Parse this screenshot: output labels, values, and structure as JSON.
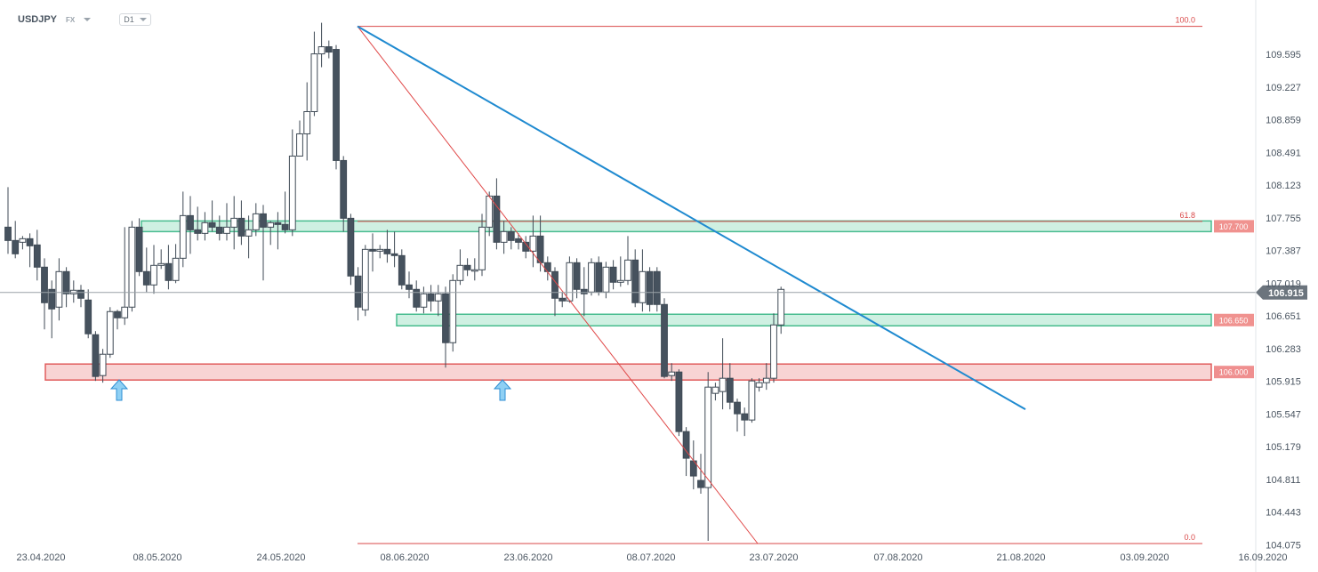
{
  "toolbar": {
    "symbol": "USDJPY",
    "market": "FX",
    "timeframe": "D1"
  },
  "chart_data": {
    "type": "candlestick",
    "symbol": "USDJPY",
    "timeframe": "D1",
    "current_price": "106.915",
    "y_ticks": [
      "109.595",
      "109.227",
      "108.859",
      "108.491",
      "108.123",
      "107.755",
      "107.387",
      "107.019",
      "106.651",
      "106.283",
      "105.915",
      "105.547",
      "105.179",
      "104.811",
      "104.443",
      "104.075"
    ],
    "x_ticks": [
      "23.04.2020",
      "08.05.2020",
      "24.05.2020",
      "08.06.2020",
      "23.06.2020",
      "08.07.2020",
      "23.07.2020",
      "07.08.2020",
      "21.08.2020",
      "03.09.2020",
      "16.09.2020"
    ],
    "ylim": [
      104.075,
      109.92
    ],
    "zones": [
      {
        "label": "107.700",
        "low": 107.62,
        "high": 107.7,
        "color": "#3fb98a"
      },
      {
        "label": "106.650",
        "low": 106.56,
        "high": 106.65,
        "color": "#3fb98a"
      },
      {
        "label": "106.000",
        "low": 105.95,
        "high": 106.09,
        "color": "#e05454"
      }
    ],
    "fib_levels": [
      {
        "label": "100.0",
        "price": 109.91
      },
      {
        "label": "61.8",
        "price": 107.715
      },
      {
        "label": "0.0",
        "price": 104.09
      }
    ],
    "candles": [
      [
        107.65,
        107.5,
        108.1,
        107.35
      ],
      [
        107.5,
        107.35,
        107.72,
        107.3
      ],
      [
        107.48,
        107.52,
        107.55,
        107.4
      ],
      [
        107.52,
        107.44,
        107.58,
        107.2
      ],
      [
        107.45,
        107.2,
        107.62,
        107.05
      ],
      [
        107.2,
        106.8,
        107.3,
        106.5
      ],
      [
        106.95,
        106.73,
        107.05,
        106.4
      ],
      [
        106.75,
        107.15,
        107.3,
        106.6
      ],
      [
        107.15,
        106.9,
        107.2,
        106.75
      ],
      [
        106.9,
        106.94,
        107.05,
        106.8
      ],
      [
        106.94,
        106.85,
        107.0,
        106.75
      ],
      [
        106.83,
        106.45,
        106.95,
        106.4
      ],
      [
        106.44,
        105.97,
        106.48,
        105.92
      ],
      [
        105.98,
        106.22,
        106.28,
        105.9
      ],
      [
        106.22,
        106.7,
        106.75,
        106.18
      ],
      [
        106.7,
        106.63,
        106.72,
        106.5
      ],
      [
        106.63,
        106.75,
        107.65,
        106.55
      ],
      [
        106.75,
        107.65,
        107.72,
        106.7
      ],
      [
        107.65,
        107.15,
        107.75,
        107.1
      ],
      [
        107.15,
        107.0,
        107.42,
        106.92
      ],
      [
        107.0,
        107.22,
        107.45,
        106.9
      ],
      [
        107.22,
        107.24,
        107.4,
        107.18
      ],
      [
        107.24,
        107.05,
        107.45,
        106.95
      ],
      [
        107.05,
        107.3,
        107.46,
        107.02
      ],
      [
        107.3,
        107.78,
        108.05,
        107.2
      ],
      [
        107.78,
        107.62,
        108.0,
        107.35
      ],
      [
        107.62,
        107.58,
        107.88,
        107.5
      ],
      [
        107.58,
        107.7,
        107.82,
        107.5
      ],
      [
        107.7,
        107.65,
        107.95,
        107.6
      ],
      [
        107.65,
        107.58,
        107.78,
        107.5
      ],
      [
        107.58,
        107.65,
        107.92,
        107.5
      ],
      [
        107.65,
        107.75,
        108.0,
        107.4
      ],
      [
        107.75,
        107.55,
        107.95,
        107.45
      ],
      [
        107.55,
        107.62,
        107.78,
        107.3
      ],
      [
        107.62,
        107.8,
        107.92,
        107.55
      ],
      [
        107.8,
        107.65,
        107.9,
        107.05
      ],
      [
        107.65,
        107.7,
        107.72,
        107.45
      ],
      [
        107.7,
        107.68,
        107.82,
        107.4
      ],
      [
        107.68,
        107.62,
        108.05,
        107.58
      ],
      [
        107.62,
        108.45,
        108.75,
        107.55
      ],
      [
        108.45,
        108.7,
        108.85,
        108.45
      ],
      [
        108.7,
        108.95,
        109.28,
        108.4
      ],
      [
        108.95,
        109.6,
        109.85,
        108.9
      ],
      [
        109.6,
        109.68,
        109.95,
        109.45
      ],
      [
        109.68,
        109.62,
        109.75,
        109.55
      ],
      [
        109.65,
        108.4,
        109.7,
        108.3
      ],
      [
        108.4,
        107.75,
        108.45,
        107.6
      ],
      [
        107.75,
        107.1,
        107.8,
        107.0
      ],
      [
        107.1,
        106.75,
        107.2,
        106.6
      ],
      [
        106.72,
        107.4,
        107.45,
        106.65
      ],
      [
        107.4,
        107.38,
        107.58,
        107.15
      ],
      [
        107.38,
        107.4,
        107.45,
        107.3
      ],
      [
        107.4,
        107.35,
        107.62,
        107.25
      ],
      [
        107.35,
        107.33,
        107.6,
        107.2
      ],
      [
        107.33,
        107.0,
        107.4,
        106.95
      ],
      [
        107.0,
        106.95,
        107.15,
        106.85
      ],
      [
        106.95,
        106.75,
        107.05,
        106.7
      ],
      [
        106.75,
        106.9,
        106.98,
        106.68
      ],
      [
        106.9,
        106.82,
        107.0,
        106.7
      ],
      [
        106.82,
        106.9,
        107.0,
        106.65
      ],
      [
        106.9,
        106.35,
        106.98,
        106.07
      ],
      [
        106.35,
        107.05,
        107.12,
        106.25
      ],
      [
        107.05,
        107.22,
        107.4,
        107.0
      ],
      [
        107.22,
        107.17,
        107.3,
        107.1
      ],
      [
        107.17,
        107.17,
        107.3,
        107.05
      ],
      [
        107.17,
        107.65,
        107.8,
        107.1
      ],
      [
        107.65,
        108.0,
        108.05,
        107.55
      ],
      [
        108.0,
        107.48,
        108.2,
        107.4
      ],
      [
        107.48,
        107.6,
        107.72,
        107.35
      ],
      [
        107.6,
        107.5,
        107.65,
        107.4
      ],
      [
        107.52,
        107.48,
        107.58,
        107.4
      ],
      [
        107.48,
        107.38,
        107.55,
        107.3
      ],
      [
        107.38,
        107.55,
        107.78,
        107.2
      ],
      [
        107.55,
        107.25,
        107.78,
        107.15
      ],
      [
        107.25,
        107.15,
        107.32,
        107.05
      ],
      [
        107.15,
        106.85,
        107.2,
        106.65
      ],
      [
        106.85,
        106.82,
        106.92,
        106.75
      ],
      [
        106.82,
        107.25,
        107.32,
        106.8
      ],
      [
        107.25,
        106.95,
        107.3,
        106.85
      ],
      [
        106.95,
        106.9,
        107.2,
        106.65
      ],
      [
        106.92,
        107.25,
        107.3,
        106.88
      ],
      [
        107.25,
        106.92,
        107.32,
        106.88
      ],
      [
        106.92,
        107.2,
        107.26,
        106.85
      ],
      [
        107.2,
        107.03,
        107.28,
        106.95
      ],
      [
        107.03,
        107.05,
        107.32,
        106.98
      ],
      [
        107.05,
        107.28,
        107.55,
        107.0
      ],
      [
        107.28,
        106.8,
        107.4,
        106.75
      ],
      [
        106.8,
        107.15,
        107.4,
        106.7
      ],
      [
        107.15,
        106.78,
        107.2,
        106.7
      ],
      [
        107.15,
        106.78,
        107.2,
        106.7
      ],
      [
        106.78,
        105.97,
        106.85,
        105.95
      ],
      [
        105.98,
        106.02,
        106.12,
        105.92
      ],
      [
        106.02,
        105.35,
        106.05,
        105.3
      ],
      [
        105.35,
        105.05,
        105.4,
        104.85
      ],
      [
        105.02,
        104.85,
        105.25,
        104.7
      ],
      [
        104.8,
        104.72,
        105.1,
        104.65
      ],
      [
        104.72,
        105.85,
        106.02,
        104.12
      ],
      [
        105.78,
        105.85,
        105.9,
        105.7
      ],
      [
        105.8,
        105.95,
        106.4,
        105.6
      ],
      [
        105.95,
        105.68,
        106.12,
        105.6
      ],
      [
        105.68,
        105.55,
        105.72,
        105.35
      ],
      [
        105.55,
        105.48,
        105.62,
        105.3
      ],
      [
        105.48,
        105.92,
        105.95,
        105.45
      ],
      [
        105.85,
        105.9,
        105.95,
        105.8
      ],
      [
        105.9,
        105.95,
        106.12,
        105.82
      ],
      [
        105.95,
        106.55,
        106.68,
        105.9
      ],
      [
        106.55,
        106.95,
        106.98,
        106.45
      ]
    ]
  }
}
